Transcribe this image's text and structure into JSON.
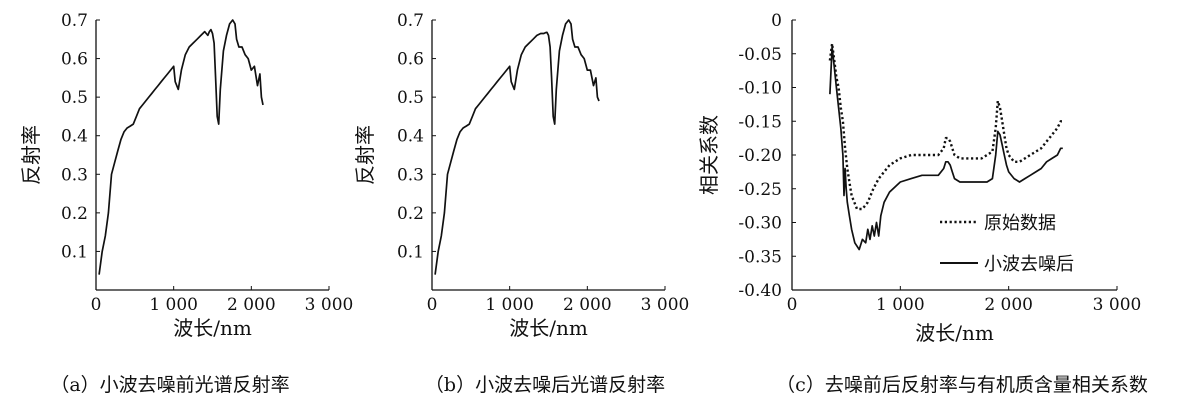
{
  "chart_data": [
    {
      "type": "line",
      "caption": "（a）小波去噪前光谱反射率",
      "ylabel": "反射率",
      "xlabel": "波长/nm",
      "xlim": [
        0,
        3000
      ],
      "ylim": [
        0,
        0.7
      ],
      "xticks": [
        0,
        1000,
        2000,
        3000
      ],
      "xtick_labels": [
        "0",
        "1 000",
        "2 000",
        "3 000"
      ],
      "yticks": [
        0.1,
        0.2,
        0.3,
        0.4,
        0.5,
        0.6,
        0.7
      ],
      "ytick_labels": [
        "0.1",
        "0.2",
        "0.3",
        "0.4",
        "0.5",
        "0.6",
        "0.7"
      ],
      "grid": false,
      "series": [
        {
          "x": [
            40,
            80,
            120,
            160,
            200,
            240,
            280,
            320,
            360,
            400,
            440,
            480,
            520,
            560,
            600,
            640,
            680,
            720,
            760,
            800,
            840,
            880,
            920,
            960,
            1000,
            1020,
            1060,
            1100,
            1150,
            1200,
            1250,
            1300,
            1350,
            1400,
            1440,
            1460,
            1480,
            1500,
            1520,
            1540,
            1560,
            1580,
            1600,
            1640,
            1680,
            1720,
            1760,
            1790,
            1810,
            1840,
            1880,
            1920,
            1960,
            2000,
            2040,
            2080,
            2110,
            2130,
            2150
          ],
          "y": [
            0.04,
            0.1,
            0.14,
            0.2,
            0.3,
            0.33,
            0.36,
            0.39,
            0.41,
            0.42,
            0.425,
            0.43,
            0.45,
            0.47,
            0.48,
            0.49,
            0.5,
            0.51,
            0.52,
            0.53,
            0.54,
            0.55,
            0.56,
            0.57,
            0.58,
            0.54,
            0.52,
            0.57,
            0.61,
            0.63,
            0.64,
            0.65,
            0.66,
            0.67,
            0.66,
            0.67,
            0.675,
            0.665,
            0.64,
            0.55,
            0.45,
            0.43,
            0.52,
            0.62,
            0.66,
            0.69,
            0.7,
            0.69,
            0.65,
            0.63,
            0.63,
            0.61,
            0.6,
            0.57,
            0.58,
            0.53,
            0.56,
            0.5,
            0.48
          ]
        }
      ]
    },
    {
      "type": "line",
      "caption": "（b）小波去噪后光谱反射率",
      "ylabel": "反射率",
      "xlabel": "波长/nm",
      "xlim": [
        0,
        3000
      ],
      "ylim": [
        0,
        0.7
      ],
      "xticks": [
        0,
        1000,
        2000,
        3000
      ],
      "xtick_labels": [
        "0",
        "1 000",
        "2 000",
        "3 000"
      ],
      "yticks": [
        0.1,
        0.2,
        0.3,
        0.4,
        0.5,
        0.6,
        0.7
      ],
      "ytick_labels": [
        "0.1",
        "0.2",
        "0.3",
        "0.4",
        "0.5",
        "0.6",
        "0.7"
      ],
      "grid": false,
      "series": [
        {
          "x": [
            40,
            80,
            120,
            160,
            200,
            240,
            280,
            320,
            360,
            400,
            440,
            480,
            520,
            560,
            600,
            640,
            680,
            720,
            760,
            800,
            840,
            880,
            920,
            960,
            1000,
            1020,
            1060,
            1100,
            1150,
            1200,
            1250,
            1300,
            1350,
            1400,
            1440,
            1460,
            1480,
            1500,
            1520,
            1540,
            1560,
            1580,
            1600,
            1640,
            1680,
            1720,
            1760,
            1790,
            1810,
            1840,
            1880,
            1920,
            1960,
            2000,
            2040,
            2080,
            2110,
            2130,
            2150
          ],
          "y": [
            0.04,
            0.1,
            0.14,
            0.2,
            0.3,
            0.33,
            0.36,
            0.39,
            0.41,
            0.42,
            0.425,
            0.43,
            0.45,
            0.47,
            0.48,
            0.49,
            0.5,
            0.51,
            0.52,
            0.53,
            0.54,
            0.55,
            0.56,
            0.57,
            0.58,
            0.54,
            0.52,
            0.57,
            0.61,
            0.63,
            0.64,
            0.65,
            0.66,
            0.665,
            0.665,
            0.667,
            0.668,
            0.66,
            0.63,
            0.55,
            0.45,
            0.43,
            0.52,
            0.62,
            0.66,
            0.69,
            0.7,
            0.69,
            0.65,
            0.63,
            0.63,
            0.61,
            0.6,
            0.57,
            0.57,
            0.53,
            0.55,
            0.5,
            0.49
          ]
        }
      ]
    },
    {
      "type": "line",
      "caption": "（c）去噪前后反射率与有机质含量相关系数",
      "ylabel": "相关系数",
      "xlabel": "波长/nm",
      "xlim": [
        0,
        3000
      ],
      "ylim": [
        -0.4,
        0
      ],
      "xticks": [
        0,
        1000,
        2000,
        3000
      ],
      "xtick_labels": [
        "0",
        "1 000",
        "2 000",
        "3 000"
      ],
      "yticks": [
        0,
        -0.05,
        -0.1,
        -0.15,
        -0.2,
        -0.25,
        -0.3,
        -0.35,
        -0.4
      ],
      "ytick_labels": [
        "0",
        "-0.05",
        "-0.10",
        "-0.15",
        "-0.20",
        "-0.25",
        "-0.30",
        "-0.35",
        "-0.40"
      ],
      "grid": false,
      "legend": "center-right",
      "series": [
        {
          "name": "原始数据",
          "style": "dotted",
          "x": [
            350,
            370,
            390,
            410,
            430,
            450,
            470,
            490,
            510,
            530,
            550,
            600,
            650,
            700,
            750,
            800,
            850,
            900,
            1000,
            1100,
            1200,
            1300,
            1350,
            1400,
            1420,
            1440,
            1460,
            1480,
            1500,
            1550,
            1600,
            1650,
            1700,
            1750,
            1800,
            1850,
            1880,
            1900,
            1920,
            1940,
            1960,
            1980,
            2000,
            2050,
            2100,
            2150,
            2200,
            2250,
            2300,
            2350,
            2400,
            2450,
            2480,
            2500
          ],
          "y": [
            -0.06,
            -0.035,
            -0.06,
            -0.085,
            -0.1,
            -0.13,
            -0.15,
            -0.19,
            -0.22,
            -0.24,
            -0.26,
            -0.28,
            -0.28,
            -0.27,
            -0.25,
            -0.235,
            -0.225,
            -0.215,
            -0.205,
            -0.2,
            -0.2,
            -0.2,
            -0.2,
            -0.19,
            -0.175,
            -0.175,
            -0.18,
            -0.19,
            -0.2,
            -0.205,
            -0.205,
            -0.205,
            -0.205,
            -0.205,
            -0.2,
            -0.195,
            -0.16,
            -0.12,
            -0.13,
            -0.15,
            -0.17,
            -0.19,
            -0.2,
            -0.21,
            -0.21,
            -0.205,
            -0.2,
            -0.195,
            -0.19,
            -0.18,
            -0.17,
            -0.16,
            -0.15,
            -0.15
          ]
        },
        {
          "name": "小波去噪后",
          "style": "solid",
          "x": [
            350,
            370,
            390,
            410,
            430,
            450,
            470,
            480,
            490,
            500,
            510,
            530,
            550,
            580,
            620,
            650,
            680,
            700,
            720,
            740,
            760,
            780,
            800,
            820,
            850,
            900,
            1000,
            1100,
            1200,
            1300,
            1350,
            1400,
            1420,
            1440,
            1460,
            1480,
            1500,
            1550,
            1600,
            1650,
            1700,
            1750,
            1800,
            1850,
            1880,
            1900,
            1920,
            1940,
            1960,
            1980,
            2000,
            2050,
            2100,
            2150,
            2200,
            2250,
            2300,
            2350,
            2400,
            2450,
            2480,
            2500
          ],
          "y": [
            -0.11,
            -0.04,
            -0.07,
            -0.1,
            -0.13,
            -0.16,
            -0.2,
            -0.26,
            -0.22,
            -0.25,
            -0.27,
            -0.29,
            -0.31,
            -0.33,
            -0.34,
            -0.325,
            -0.33,
            -0.31,
            -0.325,
            -0.305,
            -0.32,
            -0.3,
            -0.32,
            -0.29,
            -0.27,
            -0.255,
            -0.24,
            -0.235,
            -0.23,
            -0.23,
            -0.23,
            -0.22,
            -0.21,
            -0.21,
            -0.215,
            -0.225,
            -0.235,
            -0.24,
            -0.24,
            -0.24,
            -0.24,
            -0.24,
            -0.24,
            -0.235,
            -0.2,
            -0.165,
            -0.17,
            -0.185,
            -0.2,
            -0.215,
            -0.225,
            -0.235,
            -0.24,
            -0.235,
            -0.23,
            -0.225,
            -0.22,
            -0.21,
            -0.205,
            -0.2,
            -0.19,
            -0.19
          ]
        }
      ]
    }
  ]
}
